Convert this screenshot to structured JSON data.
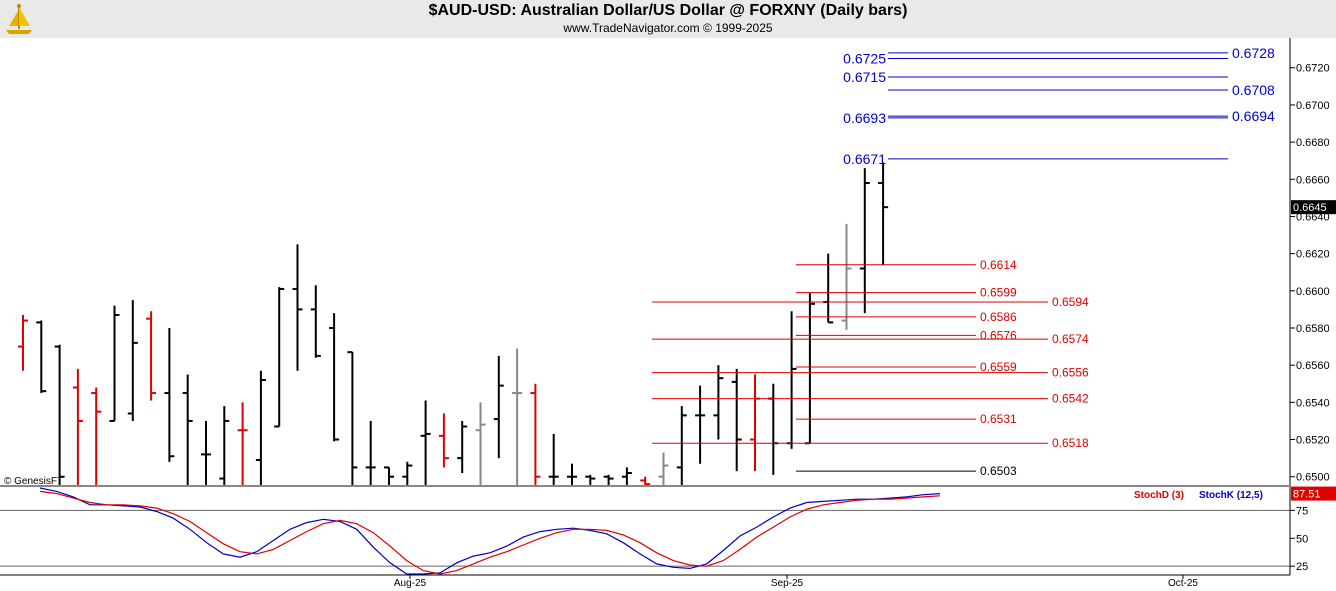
{
  "header": {
    "title": "$AUD-USD:  Australian Dollar/US Dollar @ FORXNY  (Daily bars)",
    "subtitle": "www.TradeNavigator.com © 1999-2025"
  },
  "watermark": "© GenesisFT",
  "colors": {
    "up": "#000000",
    "down": "#e00000",
    "neutral": "#888888",
    "blue_levels": "#0000cc",
    "red_levels": "#e00000",
    "stochK": "#0000cc",
    "stochD": "#e00000"
  },
  "chart_data": [
    {
      "type": "ohlc",
      "ylim": [
        0.6495,
        0.6736
      ],
      "y_ticks": [
        "0.6720",
        "0.6700",
        "0.6680",
        "0.6660",
        "0.6640",
        "0.6620",
        "0.6600",
        "0.6580",
        "0.6560",
        "0.6540",
        "0.6520",
        "0.6500"
      ],
      "last_price": "0.6645",
      "x_ticks": [
        "Aug-25",
        "Sep-25",
        "Oct-25"
      ],
      "bars": [
        {
          "o": 0.657,
          "h": 0.6587,
          "l": 0.6557,
          "c": 0.6584,
          "dir": "down"
        },
        {
          "o": 0.6583,
          "h": 0.6584,
          "l": 0.6545,
          "c": 0.6546,
          "dir": "up"
        },
        {
          "o": 0.657,
          "h": 0.6571,
          "l": 0.6495,
          "c": 0.65,
          "dir": "up"
        },
        {
          "o": 0.6548,
          "h": 0.6558,
          "l": 0.6495,
          "c": 0.653,
          "dir": "down"
        },
        {
          "o": 0.6545,
          "h": 0.6548,
          "l": 0.6495,
          "c": 0.6535,
          "dir": "down"
        },
        {
          "o": 0.653,
          "h": 0.6592,
          "l": 0.653,
          "c": 0.6587,
          "dir": "up"
        },
        {
          "o": 0.6534,
          "h": 0.6595,
          "l": 0.653,
          "c": 0.6572,
          "dir": "up"
        },
        {
          "o": 0.6585,
          "h": 0.6589,
          "l": 0.6541,
          "c": 0.6545,
          "dir": "down"
        },
        {
          "o": 0.6545,
          "h": 0.658,
          "l": 0.6508,
          "c": 0.6511,
          "dir": "up"
        },
        {
          "o": 0.6545,
          "h": 0.6555,
          "l": 0.6495,
          "c": 0.653,
          "dir": "up"
        },
        {
          "o": 0.6512,
          "h": 0.653,
          "l": 0.6495,
          "c": 0.6512,
          "dir": "up"
        },
        {
          "o": 0.6499,
          "h": 0.6538,
          "l": 0.6495,
          "c": 0.653,
          "dir": "up"
        },
        {
          "o": 0.6525,
          "h": 0.654,
          "l": 0.6495,
          "c": 0.6525,
          "dir": "down"
        },
        {
          "o": 0.6509,
          "h": 0.6557,
          "l": 0.6495,
          "c": 0.6552,
          "dir": "up"
        },
        {
          "o": 0.6527,
          "h": 0.6602,
          "l": 0.6527,
          "c": 0.6601,
          "dir": "up"
        },
        {
          "o": 0.6601,
          "h": 0.6625,
          "l": 0.6557,
          "c": 0.659,
          "dir": "up"
        },
        {
          "o": 0.659,
          "h": 0.6603,
          "l": 0.6564,
          "c": 0.6565,
          "dir": "up"
        },
        {
          "o": 0.658,
          "h": 0.6588,
          "l": 0.6519,
          "c": 0.652,
          "dir": "up"
        },
        {
          "o": 0.6567,
          "h": 0.6567,
          "l": 0.6495,
          "c": 0.6505,
          "dir": "up"
        },
        {
          "o": 0.6505,
          "h": 0.653,
          "l": 0.6495,
          "c": 0.6505,
          "dir": "up"
        },
        {
          "o": 0.6505,
          "h": 0.6505,
          "l": 0.6495,
          "c": 0.65,
          "dir": "up"
        },
        {
          "o": 0.65,
          "h": 0.6508,
          "l": 0.6495,
          "c": 0.6506,
          "dir": "up"
        },
        {
          "o": 0.6522,
          "h": 0.6541,
          "l": 0.6495,
          "c": 0.6523,
          "dir": "up"
        },
        {
          "o": 0.6522,
          "h": 0.6534,
          "l": 0.6505,
          "c": 0.651,
          "dir": "down"
        },
        {
          "o": 0.651,
          "h": 0.653,
          "l": 0.6502,
          "c": 0.6527,
          "dir": "up"
        },
        {
          "o": 0.6525,
          "h": 0.654,
          "l": 0.6495,
          "c": 0.6528,
          "dir": "neutral"
        },
        {
          "o": 0.6531,
          "h": 0.6565,
          "l": 0.651,
          "c": 0.6549,
          "dir": "up"
        },
        {
          "o": 0.6545,
          "h": 0.6569,
          "l": 0.6495,
          "c": 0.6545,
          "dir": "neutral"
        },
        {
          "o": 0.6545,
          "h": 0.655,
          "l": 0.6495,
          "c": 0.65,
          "dir": "down"
        },
        {
          "o": 0.65,
          "h": 0.6523,
          "l": 0.6495,
          "c": 0.65,
          "dir": "up"
        },
        {
          "o": 0.65,
          "h": 0.6507,
          "l": 0.6495,
          "c": 0.65,
          "dir": "up"
        },
        {
          "o": 0.65,
          "h": 0.6501,
          "l": 0.6495,
          "c": 0.6499,
          "dir": "up"
        },
        {
          "o": 0.65,
          "h": 0.6501,
          "l": 0.6495,
          "c": 0.6499,
          "dir": "up"
        },
        {
          "o": 0.65,
          "h": 0.6505,
          "l": 0.6495,
          "c": 0.6502,
          "dir": "up"
        },
        {
          "o": 0.6498,
          "h": 0.65,
          "l": 0.6495,
          "c": 0.6496,
          "dir": "down"
        },
        {
          "o": 0.65,
          "h": 0.6513,
          "l": 0.6495,
          "c": 0.6506,
          "dir": "neutral"
        },
        {
          "o": 0.6505,
          "h": 0.6538,
          "l": 0.6495,
          "c": 0.6533,
          "dir": "up"
        },
        {
          "o": 0.6533,
          "h": 0.6549,
          "l": 0.6507,
          "c": 0.6533,
          "dir": "up"
        },
        {
          "o": 0.6533,
          "h": 0.656,
          "l": 0.652,
          "c": 0.6553,
          "dir": "up"
        },
        {
          "o": 0.6551,
          "h": 0.6558,
          "l": 0.6503,
          "c": 0.652,
          "dir": "up"
        },
        {
          "o": 0.652,
          "h": 0.6555,
          "l": 0.6503,
          "c": 0.6542,
          "dir": "down"
        },
        {
          "o": 0.6542,
          "h": 0.655,
          "l": 0.6501,
          "c": 0.6518,
          "dir": "up"
        },
        {
          "o": 0.6518,
          "h": 0.6589,
          "l": 0.6515,
          "c": 0.6558,
          "dir": "up"
        },
        {
          "o": 0.6518,
          "h": 0.6599,
          "l": 0.6518,
          "c": 0.6593,
          "dir": "up"
        },
        {
          "o": 0.6594,
          "h": 0.662,
          "l": 0.6583,
          "c": 0.6583,
          "dir": "up"
        },
        {
          "o": 0.6584,
          "h": 0.6636,
          "l": 0.6579,
          "c": 0.6612,
          "dir": "neutral"
        },
        {
          "o": 0.6612,
          "h": 0.6666,
          "l": 0.6588,
          "c": 0.6658,
          "dir": "up"
        },
        {
          "o": 0.6658,
          "h": 0.6669,
          "l": 0.6614,
          "c": 0.6645,
          "dir": "up"
        }
      ]
    },
    {
      "type": "levels",
      "blue_levels": [
        {
          "label": "0.6725",
          "value": 0.6725,
          "side": "left"
        },
        {
          "label": "0.6728",
          "value": 0.6728,
          "side": "right"
        },
        {
          "label": "0.6715",
          "value": 0.6715,
          "side": "left"
        },
        {
          "label": "0.6708",
          "value": 0.6708,
          "side": "right"
        },
        {
          "label": "0.6693",
          "value": 0.6693,
          "side": "left"
        },
        {
          "label": "0.6694",
          "value": 0.6694,
          "side": "right"
        },
        {
          "label": "0.6671",
          "value": 0.6671,
          "side": "left"
        }
      ],
      "red_levels": [
        {
          "label": "0.6614",
          "value": 0.6614,
          "side": "inner"
        },
        {
          "label": "0.6599",
          "value": 0.6599,
          "side": "inner"
        },
        {
          "label": "0.6594",
          "value": 0.6594,
          "side": "outer"
        },
        {
          "label": "0.6586",
          "value": 0.6586,
          "side": "inner"
        },
        {
          "label": "0.6576",
          "value": 0.6576,
          "side": "inner"
        },
        {
          "label": "0.6574",
          "value": 0.6574,
          "side": "outer"
        },
        {
          "label": "0.6559",
          "value": 0.6559,
          "side": "inner"
        },
        {
          "label": "0.6556",
          "value": 0.6556,
          "side": "outer"
        },
        {
          "label": "0.6542",
          "value": 0.6542,
          "side": "outer"
        },
        {
          "label": "0.6531",
          "value": 0.6531,
          "side": "inner"
        },
        {
          "label": "0.6518",
          "value": 0.6518,
          "side": "outer"
        }
      ],
      "black_levels": [
        {
          "label": "0.6503",
          "value": 0.6503
        }
      ]
    },
    {
      "type": "line",
      "ylim": [
        18,
        95
      ],
      "y_ticks": [
        "75",
        "50",
        "25"
      ],
      "last_value": "87.51",
      "series": [
        {
          "name": "StochK (12,5)",
          "color": "#0000cc",
          "values": [
            96,
            92,
            87,
            80,
            80,
            79,
            78,
            74,
            68,
            58,
            46,
            36,
            33,
            38,
            48,
            58,
            64,
            67,
            65,
            58,
            42,
            28,
            18,
            16,
            19,
            28,
            34,
            37,
            43,
            51,
            56,
            58,
            59,
            57,
            54,
            46,
            36,
            27,
            24,
            23,
            27,
            39,
            52,
            60,
            69,
            77,
            82,
            83,
            84,
            85,
            85,
            86,
            87,
            89,
            90
          ]
        },
        {
          "name": "StochD (3)",
          "color": "#e00000",
          "values": [
            92,
            90,
            86,
            82,
            80,
            80,
            79,
            77,
            72,
            65,
            55,
            45,
            38,
            36,
            40,
            48,
            56,
            63,
            66,
            63,
            55,
            43,
            30,
            21,
            17,
            21,
            27,
            33,
            38,
            44,
            50,
            55,
            58,
            58,
            57,
            53,
            46,
            37,
            30,
            26,
            25,
            30,
            40,
            51,
            60,
            69,
            76,
            80,
            82,
            84,
            85,
            85,
            86,
            87,
            88
          ]
        }
      ],
      "legend": "top-right"
    }
  ]
}
